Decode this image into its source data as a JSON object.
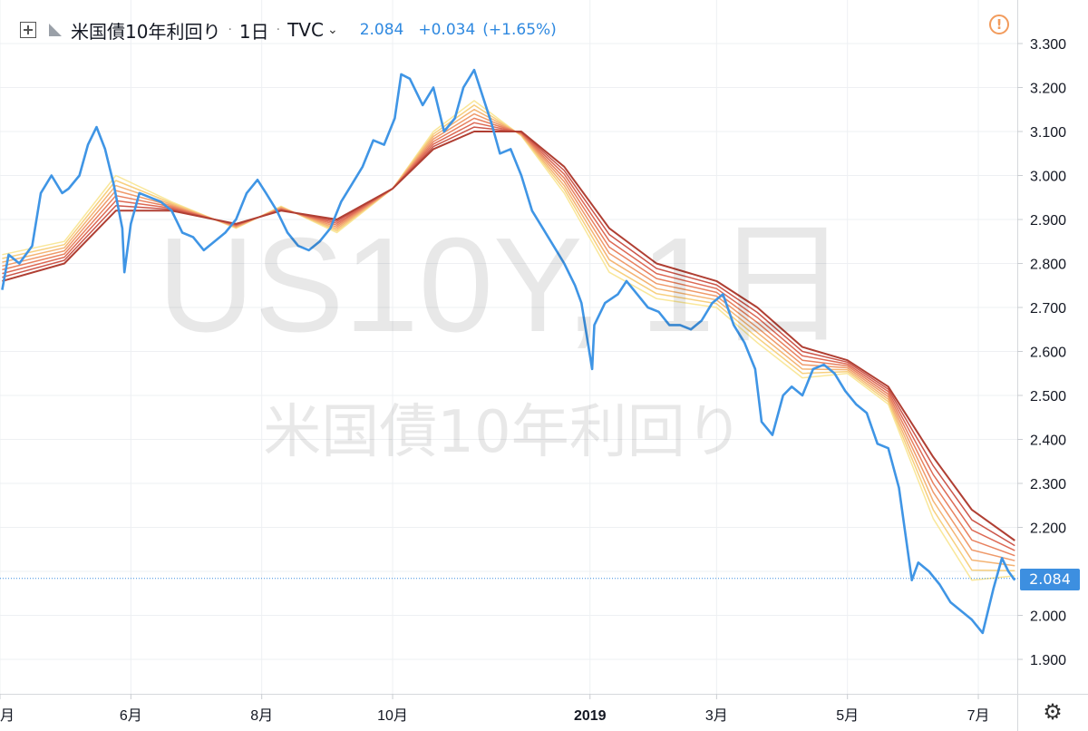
{
  "header": {
    "symbol_name": "米国債10年利回り",
    "interval": "1日",
    "exchange": "TVC",
    "last": "2.084",
    "change": "+0.034",
    "change_pct": "(+1.65%)"
  },
  "watermark": {
    "line1": "US10Y, 1日",
    "line2": "米国債10年利回り"
  },
  "price_tag": "2.084",
  "colors": {
    "price_line": "#3f95e5",
    "ribbon": [
      "#f9e79a",
      "#f7cf7e",
      "#f4b474",
      "#ef9a6a",
      "#e8815f",
      "#dd6a55",
      "#cc564a",
      "#b03f33"
    ],
    "grid": "#eef0f3",
    "axis_text": "#131722"
  },
  "chart_data": {
    "type": "line",
    "title": "",
    "y_axis": {
      "ticks": [
        "3.300",
        "3.200",
        "3.100",
        "3.000",
        "2.900",
        "2.800",
        "2.700",
        "2.600",
        "2.500",
        "2.400",
        "2.300",
        "2.200",
        "2.000",
        "1.900"
      ],
      "range": [
        1.84,
        3.37
      ]
    },
    "x_axis": {
      "ticks": [
        "月",
        "6月",
        "8月",
        "10月",
        "2019",
        "3月",
        "5月",
        "7月"
      ],
      "range": [
        "2018-04-01",
        "2019-07-20"
      ]
    },
    "series": [
      {
        "role": "price",
        "x": [
          "2018-04-02",
          "2018-04-05",
          "2018-04-10",
          "2018-04-16",
          "2018-04-20",
          "2018-04-25",
          "2018-04-30",
          "2018-05-03",
          "2018-05-08",
          "2018-05-12",
          "2018-05-16",
          "2018-05-20",
          "2018-05-24",
          "2018-05-28",
          "2018-05-29",
          "2018-06-01",
          "2018-06-05",
          "2018-06-10",
          "2018-06-15",
          "2018-06-20",
          "2018-06-25",
          "2018-06-30",
          "2018-07-05",
          "2018-07-10",
          "2018-07-15",
          "2018-07-20",
          "2018-07-25",
          "2018-07-30",
          "2018-08-03",
          "2018-08-08",
          "2018-08-13",
          "2018-08-18",
          "2018-08-23",
          "2018-08-28",
          "2018-09-02",
          "2018-09-07",
          "2018-09-12",
          "2018-09-17",
          "2018-09-22",
          "2018-09-27",
          "2018-10-02",
          "2018-10-05",
          "2018-10-09",
          "2018-10-15",
          "2018-10-20",
          "2018-10-25",
          "2018-10-30",
          "2018-11-03",
          "2018-11-08",
          "2018-11-12",
          "2018-11-16",
          "2018-11-20",
          "2018-11-25",
          "2018-11-30",
          "2018-12-05",
          "2018-12-10",
          "2018-12-15",
          "2018-12-20",
          "2018-12-25",
          "2018-12-28",
          "2019-01-02",
          "2019-01-03",
          "2019-01-08",
          "2019-01-14",
          "2019-01-18",
          "2019-01-23",
          "2019-01-28",
          "2019-02-02",
          "2019-02-07",
          "2019-02-12",
          "2019-02-17",
          "2019-02-22",
          "2019-02-27",
          "2019-03-04",
          "2019-03-09",
          "2019-03-14",
          "2019-03-19",
          "2019-03-22",
          "2019-03-27",
          "2019-04-01",
          "2019-04-05",
          "2019-04-10",
          "2019-04-15",
          "2019-04-20",
          "2019-04-25",
          "2019-04-30",
          "2019-05-05",
          "2019-05-10",
          "2019-05-15",
          "2019-05-20",
          "2019-05-25",
          "2019-05-31",
          "2019-06-03",
          "2019-06-08",
          "2019-06-13",
          "2019-06-18",
          "2019-06-23",
          "2019-06-28",
          "2019-07-03",
          "2019-07-08",
          "2019-07-12",
          "2019-07-15",
          "2019-07-18"
        ],
        "y": [
          2.74,
          2.82,
          2.8,
          2.84,
          2.96,
          3.0,
          2.96,
          2.97,
          3.0,
          3.07,
          3.11,
          3.06,
          2.98,
          2.88,
          2.78,
          2.89,
          2.96,
          2.95,
          2.94,
          2.92,
          2.87,
          2.86,
          2.83,
          2.85,
          2.87,
          2.9,
          2.96,
          2.99,
          2.96,
          2.92,
          2.87,
          2.84,
          2.83,
          2.85,
          2.88,
          2.94,
          2.98,
          3.02,
          3.08,
          3.07,
          3.13,
          3.23,
          3.22,
          3.16,
          3.2,
          3.1,
          3.13,
          3.2,
          3.24,
          3.18,
          3.12,
          3.05,
          3.06,
          3.0,
          2.92,
          2.88,
          2.84,
          2.8,
          2.75,
          2.71,
          2.56,
          2.66,
          2.71,
          2.73,
          2.76,
          2.73,
          2.7,
          2.69,
          2.66,
          2.66,
          2.65,
          2.67,
          2.71,
          2.73,
          2.66,
          2.62,
          2.56,
          2.44,
          2.41,
          2.5,
          2.52,
          2.5,
          2.56,
          2.57,
          2.55,
          2.51,
          2.48,
          2.46,
          2.39,
          2.38,
          2.29,
          2.08,
          2.12,
          2.1,
          2.07,
          2.03,
          2.01,
          1.99,
          1.96,
          2.06,
          2.13,
          2.1,
          2.08
        ]
      },
      {
        "role": "ema_fast",
        "x": [
          "2018-04-02",
          "2018-05-01",
          "2018-05-25",
          "2018-06-20",
          "2018-07-20",
          "2018-08-10",
          "2018-09-05",
          "2018-10-01",
          "2018-10-20",
          "2018-11-08",
          "2018-11-30",
          "2018-12-20",
          "2019-01-10",
          "2019-02-01",
          "2019-03-01",
          "2019-03-20",
          "2019-04-10",
          "2019-05-01",
          "2019-05-20",
          "2019-06-10",
          "2019-06-28",
          "2019-07-18"
        ],
        "y": [
          2.82,
          2.85,
          3.0,
          2.94,
          2.88,
          2.93,
          2.87,
          2.97,
          3.1,
          3.17,
          3.09,
          2.96,
          2.78,
          2.72,
          2.7,
          2.62,
          2.54,
          2.55,
          2.48,
          2.22,
          2.08,
          2.09
        ]
      },
      {
        "role": "ema_slow",
        "x": [
          "2018-04-02",
          "2018-05-01",
          "2018-05-25",
          "2018-06-20",
          "2018-07-20",
          "2018-08-10",
          "2018-09-05",
          "2018-10-01",
          "2018-10-20",
          "2018-11-08",
          "2018-11-30",
          "2018-12-20",
          "2019-01-10",
          "2019-02-01",
          "2019-03-01",
          "2019-03-20",
          "2019-04-10",
          "2019-05-01",
          "2019-05-20",
          "2019-06-10",
          "2019-06-28",
          "2019-07-18"
        ],
        "y": [
          2.76,
          2.8,
          2.92,
          2.92,
          2.89,
          2.92,
          2.9,
          2.97,
          3.06,
          3.1,
          3.1,
          3.02,
          2.88,
          2.8,
          2.76,
          2.7,
          2.61,
          2.58,
          2.52,
          2.36,
          2.24,
          2.17
        ]
      }
    ]
  }
}
